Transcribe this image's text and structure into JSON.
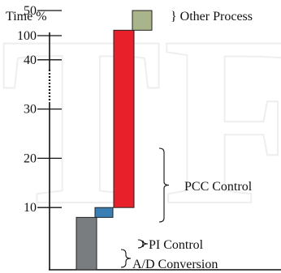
{
  "chart_data": {
    "type": "bar",
    "ylabel": "Time %",
    "y_ticks": [
      "10",
      "20",
      "30",
      "40",
      "50",
      "100"
    ],
    "y_axis_break": true,
    "ylim": [
      0,
      100
    ],
    "categories": [
      "A/D Conversion",
      "PI Control",
      "PCC Control",
      "Other Process"
    ],
    "segments": [
      {
        "name": "A/D Conversion",
        "start": 0,
        "end": 8,
        "color": "#7a7d80"
      },
      {
        "name": "PI Control",
        "start": 8,
        "end": 10,
        "color": "#3a7fb4"
      },
      {
        "name": "PCC Control",
        "start": 10,
        "end": 46,
        "color": "#e8202a"
      },
      {
        "name": "Other Process",
        "start": 46,
        "end": 50,
        "color": "#a9b48a"
      }
    ],
    "annotations": [
      {
        "label": "} Other Process",
        "target": "Other Process"
      },
      {
        "label": "PCC Control",
        "target": "PCC Control"
      },
      {
        "label": "PI Control",
        "target": "PI Control"
      },
      {
        "label": "A/D Conversion",
        "target": "A/D Conversion"
      }
    ],
    "watermark": "TFC"
  }
}
